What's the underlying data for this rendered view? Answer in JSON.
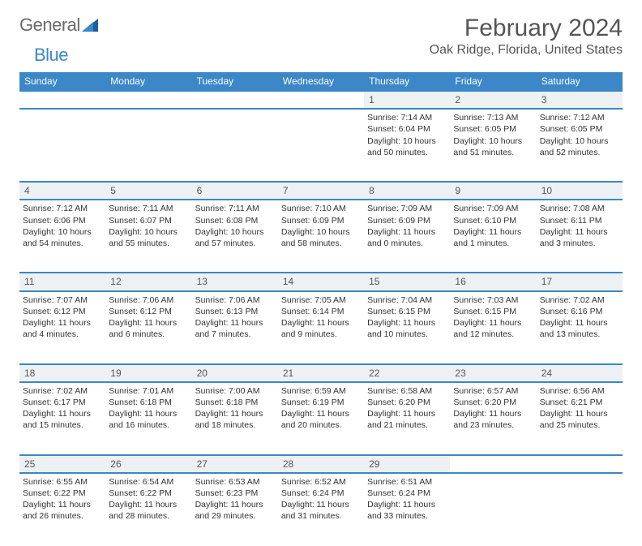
{
  "logo": {
    "text1": "General",
    "text2": "Blue"
  },
  "title": "February 2024",
  "location": "Oak Ridge, Florida, United States",
  "colors": {
    "header_bg": "#3b87c7",
    "header_text": "#ffffff",
    "daynum_bg": "#eef1f3",
    "row_border": "#3b87c7",
    "body_text": "#333333",
    "title_text": "#555555",
    "page_bg": "#ffffff"
  },
  "day_headers": [
    "Sunday",
    "Monday",
    "Tuesday",
    "Wednesday",
    "Thursday",
    "Friday",
    "Saturday"
  ],
  "weeks": [
    [
      null,
      null,
      null,
      null,
      {
        "n": "1",
        "sr": "7:14 AM",
        "ss": "6:04 PM",
        "dh": "10",
        "dm": "50"
      },
      {
        "n": "2",
        "sr": "7:13 AM",
        "ss": "6:05 PM",
        "dh": "10",
        "dm": "51"
      },
      {
        "n": "3",
        "sr": "7:12 AM",
        "ss": "6:05 PM",
        "dh": "10",
        "dm": "52"
      }
    ],
    [
      {
        "n": "4",
        "sr": "7:12 AM",
        "ss": "6:06 PM",
        "dh": "10",
        "dm": "54"
      },
      {
        "n": "5",
        "sr": "7:11 AM",
        "ss": "6:07 PM",
        "dh": "10",
        "dm": "55"
      },
      {
        "n": "6",
        "sr": "7:11 AM",
        "ss": "6:08 PM",
        "dh": "10",
        "dm": "57"
      },
      {
        "n": "7",
        "sr": "7:10 AM",
        "ss": "6:09 PM",
        "dh": "10",
        "dm": "58"
      },
      {
        "n": "8",
        "sr": "7:09 AM",
        "ss": "6:09 PM",
        "dh": "11",
        "dm": "0"
      },
      {
        "n": "9",
        "sr": "7:09 AM",
        "ss": "6:10 PM",
        "dh": "11",
        "dm": "1"
      },
      {
        "n": "10",
        "sr": "7:08 AM",
        "ss": "6:11 PM",
        "dh": "11",
        "dm": "3"
      }
    ],
    [
      {
        "n": "11",
        "sr": "7:07 AM",
        "ss": "6:12 PM",
        "dh": "11",
        "dm": "4"
      },
      {
        "n": "12",
        "sr": "7:06 AM",
        "ss": "6:12 PM",
        "dh": "11",
        "dm": "6"
      },
      {
        "n": "13",
        "sr": "7:06 AM",
        "ss": "6:13 PM",
        "dh": "11",
        "dm": "7"
      },
      {
        "n": "14",
        "sr": "7:05 AM",
        "ss": "6:14 PM",
        "dh": "11",
        "dm": "9"
      },
      {
        "n": "15",
        "sr": "7:04 AM",
        "ss": "6:15 PM",
        "dh": "11",
        "dm": "10"
      },
      {
        "n": "16",
        "sr": "7:03 AM",
        "ss": "6:15 PM",
        "dh": "11",
        "dm": "12"
      },
      {
        "n": "17",
        "sr": "7:02 AM",
        "ss": "6:16 PM",
        "dh": "11",
        "dm": "13"
      }
    ],
    [
      {
        "n": "18",
        "sr": "7:02 AM",
        "ss": "6:17 PM",
        "dh": "11",
        "dm": "15"
      },
      {
        "n": "19",
        "sr": "7:01 AM",
        "ss": "6:18 PM",
        "dh": "11",
        "dm": "16"
      },
      {
        "n": "20",
        "sr": "7:00 AM",
        "ss": "6:18 PM",
        "dh": "11",
        "dm": "18"
      },
      {
        "n": "21",
        "sr": "6:59 AM",
        "ss": "6:19 PM",
        "dh": "11",
        "dm": "20"
      },
      {
        "n": "22",
        "sr": "6:58 AM",
        "ss": "6:20 PM",
        "dh": "11",
        "dm": "21"
      },
      {
        "n": "23",
        "sr": "6:57 AM",
        "ss": "6:20 PM",
        "dh": "11",
        "dm": "23"
      },
      {
        "n": "24",
        "sr": "6:56 AM",
        "ss": "6:21 PM",
        "dh": "11",
        "dm": "25"
      }
    ],
    [
      {
        "n": "25",
        "sr": "6:55 AM",
        "ss": "6:22 PM",
        "dh": "11",
        "dm": "26"
      },
      {
        "n": "26",
        "sr": "6:54 AM",
        "ss": "6:22 PM",
        "dh": "11",
        "dm": "28"
      },
      {
        "n": "27",
        "sr": "6:53 AM",
        "ss": "6:23 PM",
        "dh": "11",
        "dm": "29"
      },
      {
        "n": "28",
        "sr": "6:52 AM",
        "ss": "6:24 PM",
        "dh": "11",
        "dm": "31"
      },
      {
        "n": "29",
        "sr": "6:51 AM",
        "ss": "6:24 PM",
        "dh": "11",
        "dm": "33"
      },
      null,
      null
    ]
  ],
  "labels": {
    "sunrise_prefix": "Sunrise: ",
    "sunset_prefix": "Sunset: ",
    "daylight_prefix": "Daylight: ",
    "hours_word": " hours",
    "and_word": "and ",
    "minutes_word": " minutes."
  }
}
